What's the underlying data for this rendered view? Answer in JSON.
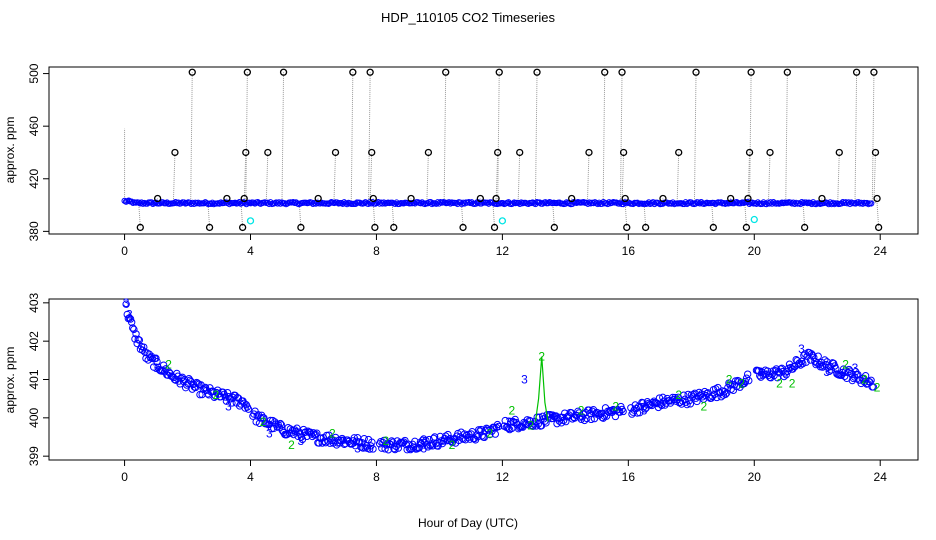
{
  "title": "HDP_110105  CO2 Timeseries",
  "xlabel": "Hour of Day (UTC)",
  "colors": {
    "black": "#000000",
    "blue": "#0000ff",
    "cyan": "#00e5e5",
    "green": "#00c000",
    "gray": "#999999"
  },
  "chart_data": [
    {
      "type": "scatter",
      "panel": "top",
      "ylabel": "approx. ppm",
      "xlim": [
        -2.4,
        25.2
      ],
      "ylim": [
        378,
        505
      ],
      "xticks": [
        0,
        4,
        8,
        12,
        16,
        20,
        24
      ],
      "yticks": [
        380,
        420,
        460,
        500
      ],
      "baseline": 401.5,
      "series": [
        {
          "name": "reference spikes (black circles)",
          "values": [
            [
              0.5,
              383
            ],
            [
              1.05,
              405
            ],
            [
              1.6,
              440
            ],
            [
              2.15,
              501
            ],
            [
              2.7,
              383
            ],
            [
              3.25,
              405
            ],
            [
              3.75,
              383
            ],
            [
              3.8,
              405
            ],
            [
              3.85,
              440
            ],
            [
              3.9,
              501
            ],
            [
              4.55,
              440
            ],
            [
              5.05,
              501
            ],
            [
              5.6,
              383
            ],
            [
              6.15,
              405
            ],
            [
              6.7,
              440
            ],
            [
              7.25,
              501
            ],
            [
              7.8,
              501
            ],
            [
              7.85,
              440
            ],
            [
              7.9,
              405
            ],
            [
              7.95,
              383
            ],
            [
              8.55,
              383
            ],
            [
              9.1,
              405
            ],
            [
              9.65,
              440
            ],
            [
              10.2,
              501
            ],
            [
              10.75,
              383
            ],
            [
              11.3,
              405
            ],
            [
              11.75,
              383
            ],
            [
              11.8,
              405
            ],
            [
              11.85,
              440
            ],
            [
              11.9,
              501
            ],
            [
              12.55,
              440
            ],
            [
              13.1,
              501
            ],
            [
              13.65,
              383
            ],
            [
              14.2,
              405
            ],
            [
              14.75,
              440
            ],
            [
              15.25,
              501
            ],
            [
              15.8,
              501
            ],
            [
              15.85,
              440
            ],
            [
              15.9,
              405
            ],
            [
              15.95,
              383
            ],
            [
              16.55,
              383
            ],
            [
              17.1,
              405
            ],
            [
              17.6,
              440
            ],
            [
              18.15,
              501
            ],
            [
              18.7,
              383
            ],
            [
              19.25,
              405
            ],
            [
              19.75,
              383
            ],
            [
              19.8,
              405
            ],
            [
              19.85,
              440
            ],
            [
              19.9,
              501
            ],
            [
              20.5,
              440
            ],
            [
              21.05,
              501
            ],
            [
              21.6,
              383
            ],
            [
              22.15,
              405
            ],
            [
              22.7,
              440
            ],
            [
              23.25,
              501
            ],
            [
              23.8,
              501
            ],
            [
              23.85,
              440
            ],
            [
              23.9,
              405
            ],
            [
              23.95,
              383
            ]
          ]
        },
        {
          "name": "flagged (cyan)",
          "values": [
            [
              4.0,
              388
            ],
            [
              12.0,
              388
            ],
            [
              20.0,
              389
            ]
          ]
        }
      ]
    },
    {
      "type": "scatter",
      "panel": "bottom",
      "ylabel": "approx. ppm",
      "xlim": [
        -2.4,
        25.2
      ],
      "ylim": [
        398.9,
        403.1
      ],
      "xticks": [
        0,
        4,
        8,
        12,
        16,
        20,
        24
      ],
      "yticks": [
        399,
        400,
        401,
        402,
        403
      ],
      "series": [
        {
          "name": "blue circles",
          "marker": "o",
          "curve": [
            [
              0.0,
              403.0
            ],
            [
              0.3,
              402.2
            ],
            [
              0.7,
              401.6
            ],
            [
              1.5,
              401.1
            ],
            [
              2.5,
              400.7
            ],
            [
              3.8,
              400.4
            ],
            [
              4.2,
              400.0
            ],
            [
              5.0,
              399.7
            ],
            [
              6.0,
              399.5
            ],
            [
              7.0,
              399.4
            ],
            [
              8.0,
              399.3
            ],
            [
              9.0,
              399.3
            ],
            [
              10.0,
              399.4
            ],
            [
              11.5,
              399.6
            ],
            [
              12.0,
              399.8
            ],
            [
              13.0,
              399.9
            ],
            [
              14.0,
              400.0
            ],
            [
              15.0,
              400.1
            ],
            [
              16.0,
              400.2
            ],
            [
              17.0,
              400.4
            ],
            [
              18.0,
              400.5
            ],
            [
              19.0,
              400.7
            ],
            [
              20.0,
              401.1
            ],
            [
              21.0,
              401.2
            ],
            [
              21.7,
              401.6
            ],
            [
              22.5,
              401.3
            ],
            [
              23.8,
              400.9
            ]
          ]
        },
        {
          "name": "label 2 (green)",
          "marker": "2",
          "values": [
            [
              1.4,
              401.4
            ],
            [
              2.9,
              400.6
            ],
            [
              4.4,
              399.9
            ],
            [
              5.3,
              399.3
            ],
            [
              6.6,
              399.6
            ],
            [
              8.3,
              399.4
            ],
            [
              10.4,
              399.3
            ],
            [
              11.6,
              399.6
            ],
            [
              12.3,
              400.2
            ],
            [
              12.9,
              399.8
            ],
            [
              13.25,
              401.6
            ],
            [
              14.5,
              400.2
            ],
            [
              15.6,
              400.3
            ],
            [
              17.6,
              400.6
            ],
            [
              18.4,
              400.3
            ],
            [
              19.2,
              401.0
            ],
            [
              19.6,
              400.9
            ],
            [
              20.8,
              400.9
            ],
            [
              21.2,
              400.9
            ],
            [
              22.9,
              401.4
            ],
            [
              23.5,
              401.0
            ],
            [
              23.9,
              400.8
            ]
          ]
        },
        {
          "name": "label 3 (blue)",
          "marker": "3",
          "values": [
            [
              0.05,
              403.0
            ],
            [
              0.15,
              402.7
            ],
            [
              1.0,
              401.3
            ],
            [
              3.3,
              400.3
            ],
            [
              4.6,
              399.6
            ],
            [
              5.6,
              399.4
            ],
            [
              7.4,
              399.2
            ],
            [
              9.5,
              399.2
            ],
            [
              12.2,
              399.9
            ],
            [
              12.7,
              401.0
            ],
            [
              13.6,
              400.0
            ],
            [
              16.5,
              400.2
            ],
            [
              20.2,
              401.2
            ],
            [
              21.5,
              401.8
            ],
            [
              22.3,
              401.2
            ],
            [
              23.2,
              401.3
            ]
          ]
        },
        {
          "name": "green spike",
          "marker": "line",
          "values": [
            [
              13.05,
              399.9
            ],
            [
              13.15,
              400.5
            ],
            [
              13.25,
              401.6
            ],
            [
              13.35,
              400.4
            ],
            [
              13.45,
              399.9
            ]
          ]
        }
      ]
    }
  ]
}
